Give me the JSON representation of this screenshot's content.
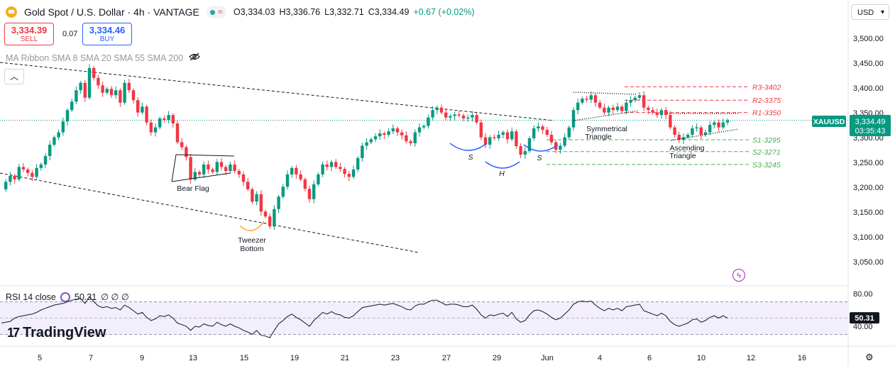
{
  "header": {
    "title": "Gold Spot / U.S. Dollar · 4h · VANTAGE",
    "open": "O3,334.03",
    "high": "H3,336.76",
    "low": "L3,332.71",
    "close": "C3,334.49",
    "change": "+0.67 (+0.02%)"
  },
  "trade": {
    "sell_price": "3,334.39",
    "sell_label": "SELL",
    "spread": "0.07",
    "buy_price": "3,334.46",
    "buy_label": "BUY"
  },
  "indicator_label": "MA Ribbon SMA 8 SMA 20 SMA 55 SMA 200",
  "currency": "USD",
  "rsi": {
    "label": "RSI 14 close",
    "value_text": "50.31",
    "extra": "∅ ∅ ∅",
    "axis_ticks": [
      "80.00",
      "40.00"
    ],
    "current_badge": "50.31"
  },
  "brand": "TradingView",
  "price_badge": {
    "symbol": "XAUUSD",
    "price": "3,334.49",
    "countdown": "03:35:43"
  },
  "colors": {
    "up": "#089981",
    "down": "#f23645",
    "resistance": "#f23645",
    "support": "#4caf50",
    "pattern_blue": "#2962ff",
    "tweezer": "#ffa726",
    "rsi_band": "#f3eefb",
    "rsi_line": "#131722"
  },
  "chart_data": {
    "type": "candlestick",
    "title": "Gold Spot / U.S. Dollar · 4h · VANTAGE",
    "y_ticks": [
      "3,500.00",
      "3,450.00",
      "3,400.00",
      "3,350.00",
      "3,300.00",
      "3,250.00",
      "3,200.00",
      "3,150.00",
      "3,100.00",
      "3,050.00"
    ],
    "ylim": [
      3025,
      3515
    ],
    "x_ticks": [
      "5",
      "7",
      "9",
      "13",
      "15",
      "19",
      "21",
      "23",
      "27",
      "29",
      "Jun",
      "4",
      "6",
      "10",
      "12",
      "16"
    ],
    "last_price": 3334.49,
    "levels": [
      {
        "label": "R3-3402",
        "value": 3402,
        "kind": "resistance"
      },
      {
        "label": "R2-3375",
        "value": 3375,
        "kind": "resistance"
      },
      {
        "label": "R1-3350",
        "value": 3350,
        "kind": "resistance"
      },
      {
        "label": "S1-3295",
        "value": 3295,
        "kind": "support"
      },
      {
        "label": "S2-3271",
        "value": 3271,
        "kind": "support"
      },
      {
        "label": "S3-3245",
        "value": 3245,
        "kind": "support"
      }
    ],
    "annotations": [
      {
        "text": "Bear Flag"
      },
      {
        "text": "Tweezer"
      },
      {
        "text": "Bottom"
      },
      {
        "text": "Symmetrical"
      },
      {
        "text": "Triangle"
      },
      {
        "text": "Ascending"
      },
      {
        "text": "Triangle"
      },
      {
        "text": "S"
      },
      {
        "text": "H"
      },
      {
        "text": "S"
      }
    ],
    "candles": [
      3195,
      3210,
      3222,
      3215,
      3240,
      3235,
      3228,
      3220,
      3238,
      3245,
      3262,
      3285,
      3300,
      3310,
      3332,
      3355,
      3372,
      3395,
      3410,
      3380,
      3440,
      3420,
      3405,
      3390,
      3398,
      3385,
      3395,
      3370,
      3410,
      3395,
      3375,
      3350,
      3362,
      3330,
      3310,
      3320,
      3338,
      3335,
      3345,
      3328,
      3290,
      3280,
      3260,
      3215,
      3230,
      3225,
      3245,
      3235,
      3230,
      3250,
      3240,
      3232,
      3245,
      3232,
      3225,
      3210,
      3195,
      3170,
      3185,
      3150,
      3140,
      3120,
      3155,
      3180,
      3200,
      3225,
      3238,
      3225,
      3215,
      3196,
      3175,
      3205,
      3225,
      3245,
      3240,
      3250,
      3240,
      3236,
      3226,
      3220,
      3235,
      3258,
      3283,
      3290,
      3296,
      3302,
      3308,
      3305,
      3312,
      3318,
      3310,
      3304,
      3292,
      3288,
      3310,
      3320,
      3323,
      3340,
      3355,
      3360,
      3350,
      3340,
      3343,
      3346,
      3344,
      3338,
      3340,
      3345,
      3330,
      3300,
      3285,
      3300,
      3298,
      3305,
      3310,
      3296,
      3312,
      3282,
      3265,
      3272,
      3298,
      3318,
      3322,
      3315,
      3305,
      3290,
      3275,
      3283,
      3300,
      3320,
      3355,
      3370,
      3378,
      3376,
      3385,
      3370,
      3360,
      3350,
      3360,
      3355,
      3362,
      3353,
      3370,
      3375,
      3380,
      3385,
      3360,
      3355,
      3350,
      3345,
      3355,
      3345,
      3320,
      3305,
      3295,
      3300,
      3305,
      3318,
      3320,
      3305,
      3310,
      3325,
      3330,
      3320,
      3330,
      3334
    ],
    "rsi_ylim": [
      30,
      85
    ],
    "rsi_levels": [
      70,
      50,
      30
    ],
    "rsi": [
      44,
      45,
      46,
      50,
      52,
      53,
      54,
      55,
      57,
      60,
      62,
      64,
      66,
      67,
      68,
      70,
      72,
      73,
      74,
      68,
      76,
      70,
      65,
      63,
      64,
      62,
      63,
      60,
      66,
      63,
      59,
      55,
      57,
      51,
      47,
      49,
      53,
      52,
      54,
      50,
      44,
      42,
      40,
      35,
      40,
      39,
      43,
      41,
      40,
      45,
      42,
      40,
      43,
      40,
      38,
      35,
      33,
      30,
      35,
      29,
      28,
      26,
      35,
      43,
      47,
      52,
      55,
      51,
      48,
      44,
      40,
      47,
      52,
      57,
      55,
      58,
      55,
      54,
      51,
      50,
      53,
      58,
      63,
      64,
      65,
      66,
      67,
      66,
      67,
      68,
      66,
      64,
      61,
      60,
      65,
      67,
      67,
      70,
      72,
      72,
      69,
      66,
      67,
      67,
      66,
      64,
      64,
      66,
      61,
      54,
      50,
      54,
      53,
      55,
      56,
      52,
      57,
      49,
      45,
      47,
      54,
      59,
      60,
      58,
      55,
      51,
      48,
      50,
      55,
      60,
      67,
      70,
      71,
      70,
      71,
      66,
      62,
      59,
      62,
      60,
      62,
      59,
      64,
      65,
      66,
      67,
      59,
      57,
      55,
      53,
      56,
      53,
      46,
      42,
      40,
      42,
      44,
      48,
      49,
      45,
      47,
      51,
      53,
      50,
      53,
      50
    ]
  }
}
